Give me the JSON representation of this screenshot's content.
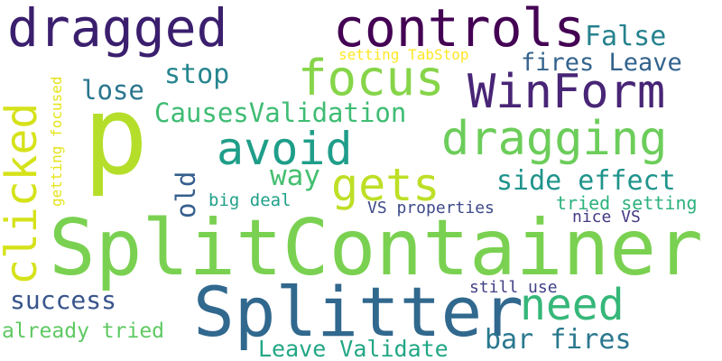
{
  "words": [
    {
      "text": "p",
      "color": "#b5de2b"
    },
    {
      "text": "SplitContainer",
      "color": "#7ad151"
    },
    {
      "text": "Splitter",
      "color": "#31688e"
    },
    {
      "text": "dragged",
      "color": "#3b1f6e"
    },
    {
      "text": "controls",
      "color": "#440154"
    },
    {
      "text": "WinForm",
      "color": "#482576"
    },
    {
      "text": "focus",
      "color": "#86d549"
    },
    {
      "text": "dragging",
      "color": "#6ccd5a"
    },
    {
      "text": "avoid",
      "color": "#1f9e89"
    },
    {
      "text": "gets",
      "color": "#bddf26"
    },
    {
      "text": "clicked",
      "color": "#d5e21a"
    },
    {
      "text": "need",
      "color": "#35b779"
    },
    {
      "text": "False",
      "color": "#26828e"
    },
    {
      "text": "fires Leave",
      "color": "#33638d"
    },
    {
      "text": "stop",
      "color": "#25858e"
    },
    {
      "text": "lose",
      "color": "#2a768e"
    },
    {
      "text": "CausesValidation",
      "color": "#3fbc73"
    },
    {
      "text": "way",
      "color": "#44bf70"
    },
    {
      "text": "side effect",
      "color": "#1f948c"
    },
    {
      "text": "old",
      "color": "#355f8d"
    },
    {
      "text": "big deal",
      "color": "#1fa088"
    },
    {
      "text": "VS properties",
      "color": "#3e4a89"
    },
    {
      "text": "tried setting",
      "color": "#2db27d"
    },
    {
      "text": "nice VS",
      "color": "#443983"
    },
    {
      "text": "setting TabStop",
      "color": "#fde725"
    },
    {
      "text": "getting focused",
      "color": "#e5e419"
    },
    {
      "text": "success",
      "color": "#39558c"
    },
    {
      "text": "still use",
      "color": "#424086"
    },
    {
      "text": "already tried",
      "color": "#5ec962"
    },
    {
      "text": "Leave Validate",
      "color": "#22a785"
    },
    {
      "text": "bar fires",
      "color": "#2a788e"
    }
  ]
}
